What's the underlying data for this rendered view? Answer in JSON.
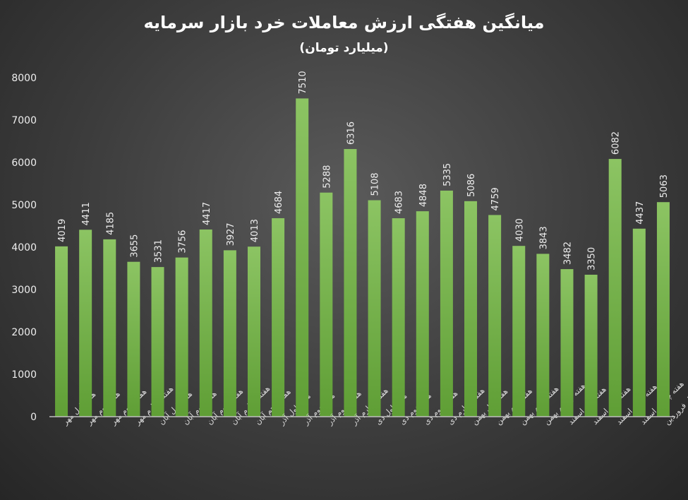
{
  "chart_data": {
    "type": "bar",
    "title": "میانگین هفتگی ارزش معاملات خرد بازار سرمایه",
    "subtitle": "(میلیارد تومان)",
    "xlabel": "",
    "ylabel": "",
    "ylim": [
      0,
      8000
    ],
    "yticks": [
      0,
      1000,
      2000,
      3000,
      4000,
      5000,
      6000,
      7000,
      8000
    ],
    "grid": false,
    "bar_color": "#76b34a",
    "categories": [
      "هفته اول مهر",
      "هفته دوم مهر",
      "هفته سوم مهر",
      "هفته چهارم مهر",
      "هفته اول آبان",
      "هفته دوم آبان",
      "هفته سوم آبان",
      "هفته چهارم آبان",
      "هفته پنجم آبان",
      "هفته اول آذر",
      "هفته دوم آذر",
      "هفته سوم آذر",
      "هفته چهارم آذر",
      "هفته اول دی",
      "هفته دوم دی",
      "هفته سوم دی",
      "هفته چهارم دی",
      "هفته اول بهمن",
      "هفته دوم بهمن",
      "هفته سوم بهمن",
      "هفته چهارم بهمن",
      "هفته اول اسفند",
      "هفته دوم اسفند",
      "هفته سوم اسفند",
      "هفته چهارم اسفند",
      "هفته اول فروردین"
    ],
    "values": [
      4019,
      4411,
      4185,
      3655,
      3531,
      3756,
      4417,
      3927,
      4013,
      4684,
      7510,
      5288,
      6316,
      5108,
      4683,
      4848,
      5335,
      5086,
      4759,
      4030,
      3843,
      3482,
      3350,
      6082,
      4437,
      5063
    ]
  }
}
